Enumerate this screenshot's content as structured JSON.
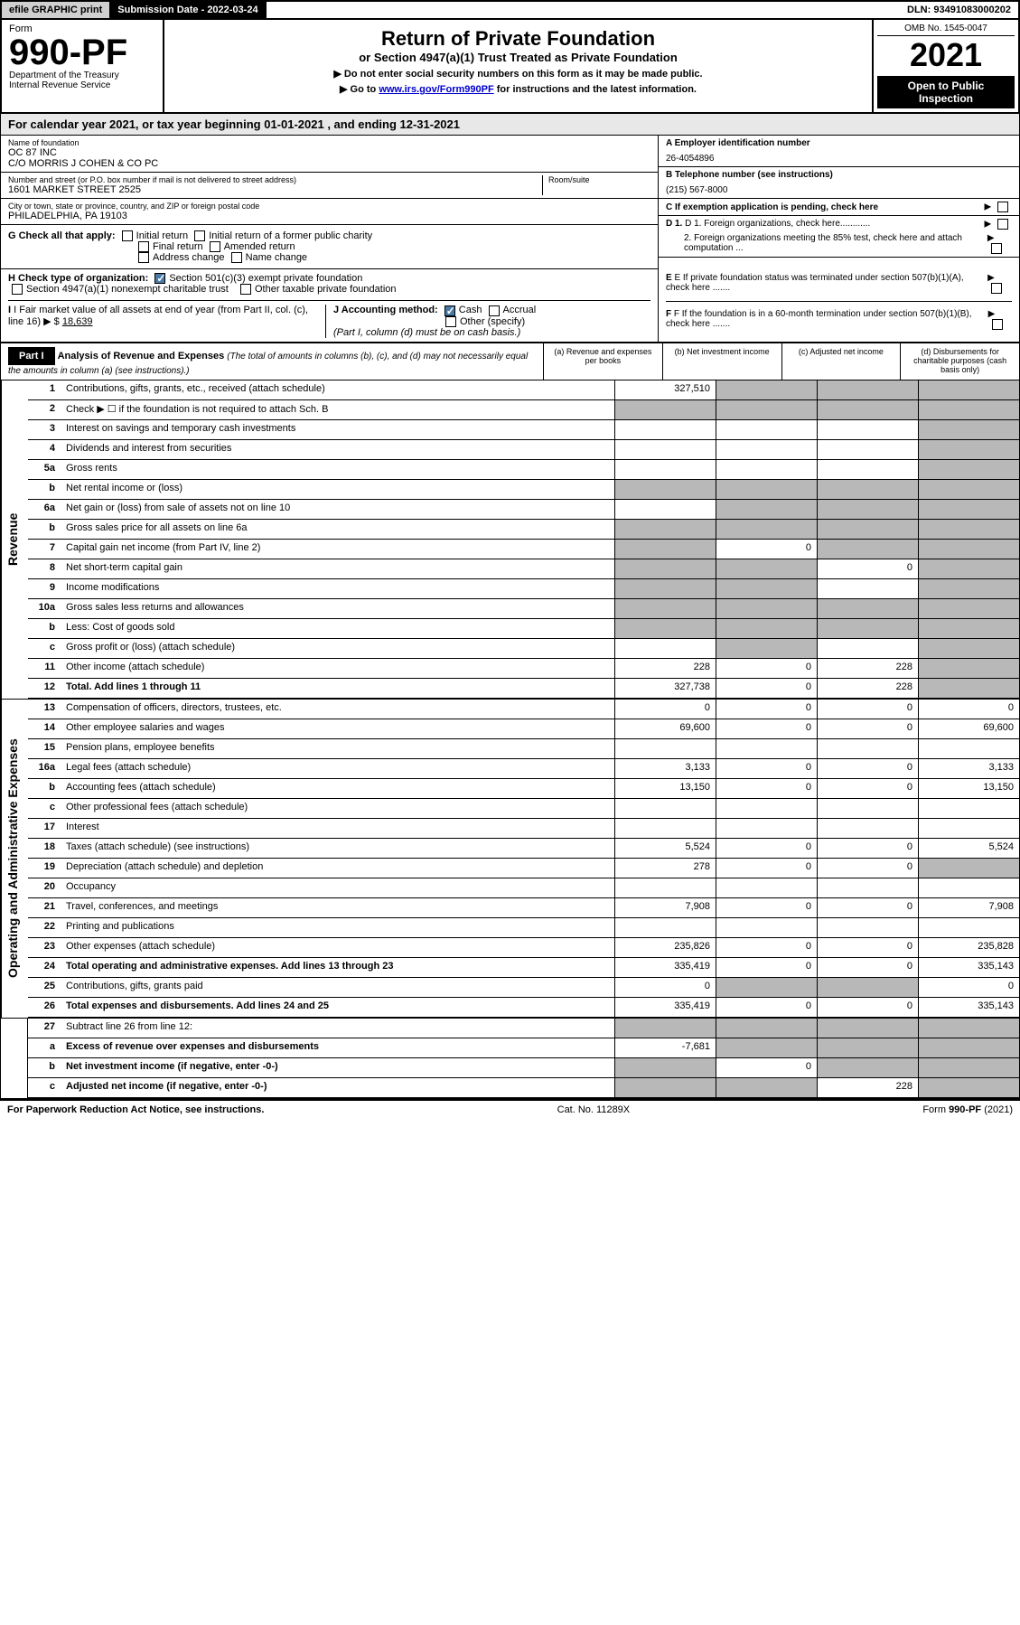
{
  "top": {
    "efile": "efile GRAPHIC print",
    "sub_date_label": "Submission Date - 2022-03-24",
    "dln": "DLN: 93491083000202"
  },
  "header": {
    "form_word": "Form",
    "form_no": "990-PF",
    "dept": "Department of the Treasury",
    "irs": "Internal Revenue Service",
    "title": "Return of Private Foundation",
    "subtitle": "or Section 4947(a)(1) Trust Treated as Private Foundation",
    "instr1": "▶ Do not enter social security numbers on this form as it may be made public.",
    "instr2_a": "▶ Go to ",
    "instr2_link": "www.irs.gov/Form990PF",
    "instr2_b": " for instructions and the latest information.",
    "omb": "OMB No. 1545-0047",
    "year": "2021",
    "inspection": "Open to Public Inspection"
  },
  "cal": "For calendar year 2021, or tax year beginning 01-01-2021                    , and ending 12-31-2021",
  "info": {
    "name_label": "Name of foundation",
    "name1": "OC 87 INC",
    "name2": "C/O MORRIS J COHEN & CO PC",
    "addr_label": "Number and street (or P.O. box number if mail is not delivered to street address)",
    "addr": "1601 MARKET STREET 2525",
    "room_label": "Room/suite",
    "city_label": "City or town, state or province, country, and ZIP or foreign postal code",
    "city": "PHILADELPHIA, PA  19103",
    "a_label": "A Employer identification number",
    "a_val": "26-4054896",
    "b_label": "B Telephone number (see instructions)",
    "b_val": "(215) 567-8000",
    "c_label": "C If exemption application is pending, check here",
    "d1": "D 1. Foreign organizations, check here............",
    "d2": "2. Foreign organizations meeting the 85% test, check here and attach computation ...",
    "e": "E  If private foundation status was terminated under section 507(b)(1)(A), check here .......",
    "f": "F  If the foundation is in a 60-month termination under section 507(b)(1)(B), check here .......",
    "g_label": "G Check all that apply:",
    "g_opts": [
      "Initial return",
      "Initial return of a former public charity",
      "Final return",
      "Amended return",
      "Address change",
      "Name change"
    ],
    "h_label": "H Check type of organization:",
    "h_opt1": "Section 501(c)(3) exempt private foundation",
    "h_opt2": "Section 4947(a)(1) nonexempt charitable trust",
    "h_opt3": "Other taxable private foundation",
    "i_label": "I Fair market value of all assets at end of year (from Part II, col. (c), line 16) ▶ $",
    "i_val": "18,639",
    "j_label": "J Accounting method:",
    "j_cash": "Cash",
    "j_accrual": "Accrual",
    "j_other": "Other (specify)",
    "j_note": "(Part I, column (d) must be on cash basis.)"
  },
  "part1": {
    "label": "Part I",
    "title": "Analysis of Revenue and Expenses",
    "title_note": " (The total of amounts in columns (b), (c), and (d) may not necessarily equal the amounts in column (a) (see instructions).)",
    "col_a": "(a) Revenue and expenses per books",
    "col_b": "(b) Net investment income",
    "col_c": "(c) Adjusted net income",
    "col_d": "(d) Disbursements for charitable purposes (cash basis only)"
  },
  "sides": {
    "revenue": "Revenue",
    "expenses": "Operating and Administrative Expenses"
  },
  "lines": [
    {
      "n": "1",
      "d": "",
      "a": "327,510",
      "b": "",
      "c": "",
      "grey": [
        "b",
        "c",
        "d"
      ]
    },
    {
      "n": "2",
      "d": "",
      "a": "",
      "b": "",
      "c": "",
      "grey": [
        "a",
        "b",
        "c",
        "d"
      ]
    },
    {
      "n": "3",
      "d": "",
      "a": "",
      "b": "",
      "c": "",
      "grey": [
        "d"
      ]
    },
    {
      "n": "4",
      "d": "",
      "a": "",
      "b": "",
      "c": "",
      "grey": [
        "d"
      ]
    },
    {
      "n": "5a",
      "d": "",
      "a": "",
      "b": "",
      "c": "",
      "grey": [
        "d"
      ]
    },
    {
      "n": "b",
      "d": "",
      "a": "",
      "b": "",
      "c": "",
      "grey": [
        "a",
        "b",
        "c",
        "d"
      ]
    },
    {
      "n": "6a",
      "d": "",
      "a": "",
      "b": "",
      "c": "",
      "grey": [
        "b",
        "c",
        "d"
      ]
    },
    {
      "n": "b",
      "d": "",
      "a": "",
      "b": "",
      "c": "",
      "grey": [
        "a",
        "b",
        "c",
        "d"
      ]
    },
    {
      "n": "7",
      "d": "",
      "a": "",
      "b": "0",
      "c": "",
      "grey": [
        "a",
        "c",
        "d"
      ]
    },
    {
      "n": "8",
      "d": "",
      "a": "",
      "b": "",
      "c": "0",
      "grey": [
        "a",
        "b",
        "d"
      ]
    },
    {
      "n": "9",
      "d": "",
      "a": "",
      "b": "",
      "c": "",
      "grey": [
        "a",
        "b",
        "d"
      ]
    },
    {
      "n": "10a",
      "d": "",
      "a": "",
      "b": "",
      "c": "",
      "grey": [
        "a",
        "b",
        "c",
        "d"
      ]
    },
    {
      "n": "b",
      "d": "",
      "a": "",
      "b": "",
      "c": "",
      "grey": [
        "a",
        "b",
        "c",
        "d"
      ]
    },
    {
      "n": "c",
      "d": "",
      "a": "",
      "b": "",
      "c": "",
      "grey": [
        "b",
        "d"
      ]
    },
    {
      "n": "11",
      "d": "",
      "a": "228",
      "b": "0",
      "c": "228",
      "grey": [
        "d"
      ]
    },
    {
      "n": "12",
      "d": "",
      "a": "327,738",
      "b": "0",
      "c": "228",
      "grey": [
        "d"
      ],
      "bold": true
    }
  ],
  "exp_lines": [
    {
      "n": "13",
      "d": "0",
      "a": "0",
      "b": "0",
      "c": "0"
    },
    {
      "n": "14",
      "d": "69,600",
      "a": "69,600",
      "b": "0",
      "c": "0"
    },
    {
      "n": "15",
      "d": "",
      "a": "",
      "b": "",
      "c": ""
    },
    {
      "n": "16a",
      "d": "3,133",
      "a": "3,133",
      "b": "0",
      "c": "0"
    },
    {
      "n": "b",
      "d": "13,150",
      "a": "13,150",
      "b": "0",
      "c": "0"
    },
    {
      "n": "c",
      "d": "",
      "a": "",
      "b": "",
      "c": ""
    },
    {
      "n": "17",
      "d": "",
      "a": "",
      "b": "",
      "c": ""
    },
    {
      "n": "18",
      "d": "5,524",
      "a": "5,524",
      "b": "0",
      "c": "0"
    },
    {
      "n": "19",
      "d": "",
      "a": "278",
      "b": "0",
      "c": "0",
      "grey": [
        "d"
      ]
    },
    {
      "n": "20",
      "d": "",
      "a": "",
      "b": "",
      "c": ""
    },
    {
      "n": "21",
      "d": "7,908",
      "a": "7,908",
      "b": "0",
      "c": "0"
    },
    {
      "n": "22",
      "d": "",
      "a": "",
      "b": "",
      "c": ""
    },
    {
      "n": "23",
      "d": "235,828",
      "a": "235,826",
      "b": "0",
      "c": "0"
    },
    {
      "n": "24",
      "d": "335,143",
      "a": "335,419",
      "b": "0",
      "c": "0",
      "bold": true
    },
    {
      "n": "25",
      "d": "0",
      "a": "0",
      "b": "",
      "c": "",
      "grey": [
        "b",
        "c"
      ]
    },
    {
      "n": "26",
      "d": "335,143",
      "a": "335,419",
      "b": "0",
      "c": "0",
      "bold": true
    }
  ],
  "final_lines": [
    {
      "n": "27",
      "d": "",
      "a": "",
      "b": "",
      "c": "",
      "grey": [
        "a",
        "b",
        "c",
        "d"
      ]
    },
    {
      "n": "a",
      "d": "",
      "a": "-7,681",
      "b": "",
      "c": "",
      "grey": [
        "b",
        "c",
        "d"
      ],
      "bold": true
    },
    {
      "n": "b",
      "d": "",
      "a": "",
      "b": "0",
      "c": "",
      "grey": [
        "a",
        "c",
        "d"
      ],
      "bold": true
    },
    {
      "n": "c",
      "d": "",
      "a": "",
      "b": "",
      "c": "228",
      "grey": [
        "a",
        "b",
        "d"
      ],
      "bold": true
    }
  ],
  "footer": {
    "left": "For Paperwork Reduction Act Notice, see instructions.",
    "mid": "Cat. No. 11289X",
    "right": "Form 990-PF (2021)"
  }
}
